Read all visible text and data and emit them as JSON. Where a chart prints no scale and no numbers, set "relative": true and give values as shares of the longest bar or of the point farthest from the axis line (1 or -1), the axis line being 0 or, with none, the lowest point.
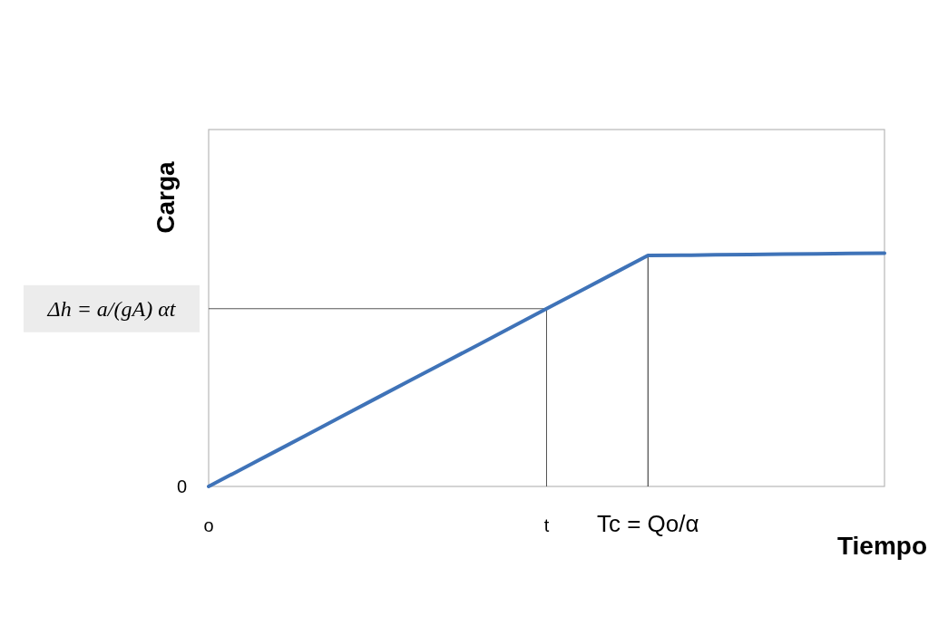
{
  "chart_data": {
    "type": "line",
    "xlabel": "Tiempo",
    "ylabel": "Carga",
    "relative": true,
    "categories": [
      "o",
      null,
      null,
      null,
      null,
      null,
      null,
      null,
      null,
      null,
      "t",
      null,
      null,
      "Tc = Qo/α",
      null,
      null,
      null,
      null,
      null,
      null,
      null
    ],
    "series": [
      {
        "color": "#3f73b8",
        "values": [
          0,
          0.076,
          0.152,
          0.228,
          0.305,
          0.381,
          0.457,
          0.533,
          0.609,
          0.685,
          0.762,
          0.838,
          0.914,
          0.99,
          0.991,
          0.993,
          0.994,
          0.996,
          0.997,
          0.999,
          1
        ]
      }
    ],
    "ref_lines": [
      {
        "axis": "y",
        "value": 0.762,
        "label": "Δh = a/(gA) αt",
        "color": "#555555"
      },
      {
        "axis": "x",
        "value": "t",
        "color": "#555555"
      },
      {
        "axis": "x",
        "value": "Tc = Qo/α",
        "color": "#222222"
      }
    ],
    "annotations": [
      "0"
    ]
  }
}
